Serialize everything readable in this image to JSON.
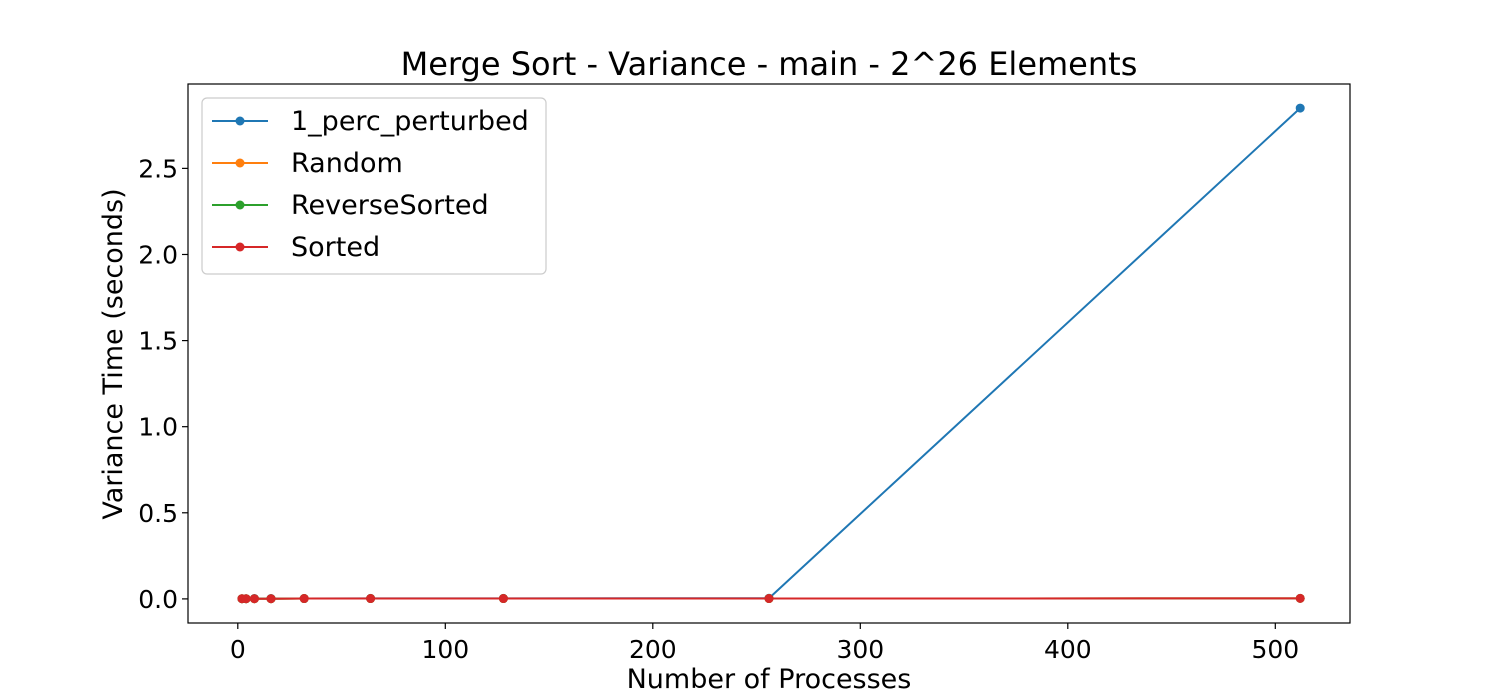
{
  "chart_data": {
    "type": "line",
    "title": "Merge Sort - Variance - main - 2^26 Elements",
    "xlabel": "Number of Processes",
    "ylabel": "Variance Time (seconds)",
    "xlim": [
      -24,
      536
    ],
    "ylim": [
      -0.14,
      2.99
    ],
    "xticks": [
      0,
      100,
      200,
      300,
      400,
      500
    ],
    "xtick_labels": [
      "0",
      "100",
      "200",
      "300",
      "400",
      "500"
    ],
    "yticks": [
      0.0,
      0.5,
      1.0,
      1.5,
      2.0,
      2.5
    ],
    "ytick_labels": [
      "0.0",
      "0.5",
      "1.0",
      "1.5",
      "2.0",
      "2.5"
    ],
    "legend_position": "top-left",
    "grid": false,
    "x": [
      2,
      4,
      8,
      16,
      32,
      64,
      128,
      256,
      512
    ],
    "series": [
      {
        "name": "1_perc_perturbed",
        "color": "#1f77b4",
        "values": [
          0.001,
          0.001,
          0.002,
          0.002,
          0.002,
          0.003,
          0.003,
          0.004,
          2.85
        ]
      },
      {
        "name": "Random",
        "color": "#ff7f0e",
        "values": [
          0.001,
          0.001,
          0.001,
          0.001,
          0.002,
          0.002,
          0.002,
          0.002,
          0.003
        ]
      },
      {
        "name": "ReverseSorted",
        "color": "#2ca02c",
        "values": [
          0.001,
          0.001,
          0.001,
          0.001,
          0.002,
          0.002,
          0.002,
          0.002,
          0.003
        ]
      },
      {
        "name": "Sorted",
        "color": "#d62728",
        "values": [
          0.001,
          0.001,
          0.001,
          0.001,
          0.002,
          0.002,
          0.002,
          0.002,
          0.003
        ]
      }
    ]
  }
}
